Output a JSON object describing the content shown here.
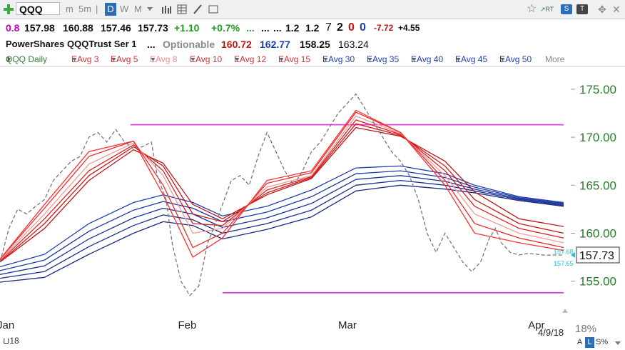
{
  "toolbar": {
    "ticker": "QQQ",
    "plus_icon": "plus-icon",
    "intervals": [
      "m",
      "5m",
      "D",
      "W",
      "M"
    ],
    "active_interval": "D",
    "rt_label": "RT"
  },
  "quote": {
    "change_small": "0.8",
    "open": "157.98",
    "high": "160.88",
    "low": "157.46",
    "last": "157.73",
    "change": "+1.10",
    "change_pct": "+0.7%",
    "dots1": "...",
    "dots2": "...",
    "dots3": "...",
    "v1": "1.2",
    "v2": "1.2",
    "v3": "7",
    "v4": "2",
    "v5": "0",
    "v6": "0",
    "v7": "-7.72",
    "v8": "+4.55"
  },
  "name_row": {
    "name": "PowerShares QQQTrust Ser 1",
    "dots": "...",
    "optionable": "Optionable",
    "p1": "160.72",
    "p2": "162.77",
    "p3": "158.25",
    "p4": "163.24"
  },
  "legend": {
    "items": [
      {
        "label": "QQQ Daily",
        "color": "#2e7d32"
      },
      {
        "label": "EAvg 3",
        "color": "#d32f2f"
      },
      {
        "label": "EAvg 5",
        "color": "#d32f2f"
      },
      {
        "label": "EAvg 8",
        "color": "#ef8a8a"
      },
      {
        "label": "EAvg 10",
        "color": "#d32f2f"
      },
      {
        "label": "EAvg 12",
        "color": "#d32f2f"
      },
      {
        "label": "EAvg 15",
        "color": "#d32f2f"
      },
      {
        "label": "EAvg 30",
        "color": "#1f3fae"
      },
      {
        "label": "EAvg 35",
        "color": "#1f3fae"
      },
      {
        "label": "EAvg 40",
        "color": "#1f3fae"
      },
      {
        "label": "EAvg 45",
        "color": "#1f3fae"
      },
      {
        "label": "EAvg 50",
        "color": "#1f3fae"
      }
    ],
    "more": "More"
  },
  "chart_data": {
    "type": "line",
    "ylim": [
      152,
      177
    ],
    "yticks": [
      "175.00",
      "170.00",
      "165.00",
      "160.00",
      "155.00"
    ],
    "x_labels": [
      "Jan",
      "Feb",
      "Mar",
      "Apr"
    ],
    "last_price_label": "157.73",
    "side_labels": [
      "157.68",
      "157.65"
    ],
    "date_label": "4/9/18",
    "horizontal_lines": [
      {
        "y": 171.3,
        "from_day": 44,
        "to_day": 190,
        "color": "#e040e0"
      },
      {
        "y": 153.8,
        "from_day": 75,
        "to_day": 190,
        "color": "#e040e0"
      }
    ],
    "price": {
      "days": [
        0,
        3,
        6,
        9,
        12,
        15,
        18,
        21,
        24,
        27,
        30,
        33,
        36,
        39,
        42,
        45,
        48,
        51,
        53,
        56,
        58,
        61,
        64,
        67,
        70,
        72,
        75,
        78,
        81,
        84,
        87,
        90,
        93,
        96,
        99,
        102,
        105,
        108,
        111,
        114,
        117,
        120,
        123,
        126,
        129,
        132,
        135,
        138,
        141,
        144,
        147,
        150,
        153,
        156,
        159,
        162,
        165,
        167,
        169,
        172,
        175,
        178,
        181,
        184,
        187,
        190
      ],
      "values": [
        157.0,
        160.5,
        162.5,
        162.0,
        162.8,
        163.5,
        165.5,
        166.5,
        167.5,
        168.0,
        170.0,
        170.5,
        169.5,
        170.8,
        169.5,
        168.8,
        169.0,
        169.5,
        166.0,
        163.5,
        159.0,
        155.0,
        153.5,
        154.5,
        159.0,
        160.5,
        163.0,
        165.5,
        166.0,
        165.0,
        168.0,
        170.5,
        168.5,
        166.5,
        165.0,
        166.5,
        168.5,
        169.5,
        171.0,
        172.5,
        173.5,
        174.5,
        173.0,
        171.5,
        170.0,
        168.5,
        167.5,
        166.0,
        163.5,
        160.0,
        158.0,
        160.0,
        158.5,
        157.0,
        156.0,
        157.0,
        159.5,
        160.5,
        159.0,
        158.0,
        157.73,
        157.9,
        157.8,
        157.7,
        157.73,
        157.73
      ]
    },
    "series_days": [
      0,
      15,
      30,
      45,
      55,
      65,
      75,
      90,
      105,
      120,
      135,
      150,
      160,
      175,
      190
    ],
    "series": [
      {
        "period": 3,
        "color": "#ff3030",
        "values": [
          157.3,
          163.0,
          168.5,
          169.6,
          164.0,
          157.5,
          159.5,
          165.5,
          166.5,
          172.8,
          170.5,
          165.0,
          160.0,
          159.0,
          158.2
        ]
      },
      {
        "period": 5,
        "color": "#ee2b2b",
        "values": [
          157.3,
          162.6,
          168.0,
          169.6,
          165.0,
          158.5,
          160.0,
          165.2,
          166.3,
          172.6,
          170.5,
          165.5,
          161.0,
          159.5,
          158.5
        ]
      },
      {
        "period": 8,
        "color": "#f39a9a",
        "values": [
          157.2,
          162.0,
          167.2,
          169.4,
          166.0,
          160.0,
          160.5,
          164.8,
          166.0,
          172.2,
          170.4,
          166.0,
          162.0,
          160.0,
          159.0
        ]
      },
      {
        "period": 10,
        "color": "#e02020",
        "values": [
          157.1,
          161.5,
          166.5,
          169.2,
          166.5,
          161.0,
          160.8,
          164.5,
          165.9,
          171.8,
          170.3,
          166.5,
          162.8,
          160.5,
          159.5
        ]
      },
      {
        "period": 12,
        "color": "#cc1a1a",
        "values": [
          157.0,
          161.0,
          166.0,
          169.0,
          167.0,
          162.0,
          161.2,
          164.2,
          165.8,
          171.4,
          170.2,
          167.0,
          163.5,
          161.0,
          160.0
        ]
      },
      {
        "period": 15,
        "color": "#c01515",
        "values": [
          157.0,
          160.5,
          165.5,
          168.7,
          167.3,
          163.0,
          161.5,
          164.0,
          165.7,
          171.0,
          170.1,
          167.5,
          164.3,
          161.5,
          160.7
        ]
      },
      {
        "period": 30,
        "color": "#1f3fae",
        "values": [
          156.5,
          157.8,
          161.0,
          163.2,
          164.0,
          163.2,
          161.8,
          162.8,
          164.5,
          166.8,
          167.0,
          166.2,
          165.0,
          163.8,
          163.2
        ]
      },
      {
        "period": 35,
        "color": "#1c38a0",
        "values": [
          156.1,
          157.2,
          160.2,
          162.4,
          163.3,
          162.6,
          161.2,
          162.2,
          163.8,
          166.2,
          166.5,
          165.8,
          164.8,
          163.7,
          163.1
        ]
      },
      {
        "period": 40,
        "color": "#1a3396",
        "values": [
          155.7,
          156.6,
          159.4,
          161.6,
          162.6,
          162.0,
          160.6,
          161.6,
          163.1,
          165.6,
          166.0,
          165.4,
          164.6,
          163.6,
          163.0
        ]
      },
      {
        "period": 45,
        "color": "#182f8c",
        "values": [
          155.3,
          156.0,
          158.6,
          160.8,
          161.9,
          161.4,
          160.0,
          161.0,
          162.4,
          165.0,
          165.5,
          165.0,
          164.4,
          163.5,
          162.9
        ]
      },
      {
        "period": 50,
        "color": "#162b82",
        "values": [
          154.9,
          155.4,
          157.8,
          160.0,
          161.2,
          160.8,
          159.4,
          160.4,
          161.7,
          164.4,
          165.0,
          164.6,
          164.2,
          163.4,
          162.8
        ]
      }
    ]
  }
}
